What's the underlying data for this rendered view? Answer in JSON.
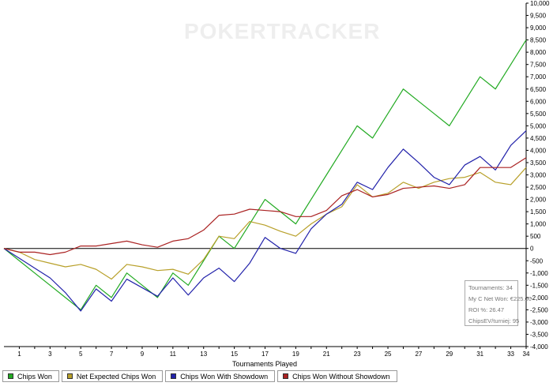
{
  "window": {
    "background": "#ffffff"
  },
  "watermark": {
    "text": "POKERTRACKER"
  },
  "stats": {
    "tournaments": "Tournaments: 34",
    "net_won": "My C Net Won: €225.00",
    "roi": "ROI %: 26.47",
    "chipsev": "ChipsEV/turniej: 95"
  },
  "chart_data": {
    "type": "line",
    "xlabel": "Tournaments Played",
    "ylabel": "",
    "xlim": [
      0,
      34
    ],
    "ylim": [
      -4000,
      10000
    ],
    "x_ticks": [
      1,
      3,
      5,
      7,
      9,
      11,
      13,
      15,
      17,
      19,
      21,
      23,
      25,
      27,
      29,
      31,
      33,
      34
    ],
    "y_ticks": [
      -4000,
      -3500,
      -3000,
      -2500,
      -2000,
      -1500,
      -1000,
      -500,
      0,
      500,
      1000,
      1500,
      2000,
      2500,
      3000,
      3500,
      4000,
      4500,
      5000,
      5500,
      6000,
      6500,
      7000,
      7500,
      8000,
      8500,
      9000,
      9500,
      10000
    ],
    "y_tick_labels": [
      "-4,000",
      "-3,500",
      "-3,000",
      "-2,500",
      "-2,000",
      "-1,500",
      "-1,000",
      "-500",
      "0",
      "500",
      "1,000",
      "1,500",
      "2,000",
      "2,500",
      "3,000",
      "3,500",
      "4,000",
      "4,500",
      "5,000",
      "5,500",
      "6,000",
      "6,500",
      "7,000",
      "7,500",
      "8,000",
      "8,500",
      "9,000",
      "9,500",
      "10,000"
    ],
    "grid": false,
    "legend_position": "bottom",
    "x": [
      0,
      1,
      2,
      3,
      4,
      5,
      6,
      7,
      8,
      9,
      10,
      11,
      12,
      13,
      14,
      15,
      16,
      17,
      18,
      19,
      20,
      21,
      22,
      23,
      24,
      25,
      26,
      27,
      28,
      29,
      30,
      31,
      32,
      33,
      34
    ],
    "series": [
      {
        "name": "Chips Won",
        "color": "#22aa22",
        "values": [
          0,
          -500,
          -1000,
          -1500,
          -2000,
          -2500,
          -1500,
          -2000,
          -1000,
          -1500,
          -2000,
          -1000,
          -1500,
          -500,
          500,
          0,
          1000,
          2000,
          1500,
          1000,
          2000,
          3000,
          4000,
          5000,
          4500,
          5500,
          6500,
          6000,
          5500,
          5000,
          6000,
          7000,
          6500,
          7500,
          8500
        ]
      },
      {
        "name": "Net Expected Chips Won",
        "color": "#b8a02a",
        "values": [
          0,
          -150,
          -450,
          -600,
          -750,
          -650,
          -850,
          -1250,
          -650,
          -750,
          -900,
          -850,
          -1050,
          -450,
          500,
          400,
          1100,
          950,
          700,
          500,
          1000,
          1400,
          1700,
          2600,
          2100,
          2250,
          2700,
          2450,
          2700,
          2850,
          2900,
          3100,
          2700,
          2600,
          3300
        ]
      },
      {
        "name": "Chips Won With Showdown",
        "color": "#2222aa",
        "values": [
          0,
          -400,
          -800,
          -1200,
          -1800,
          -2550,
          -1650,
          -2150,
          -1250,
          -1600,
          -1950,
          -1200,
          -1900,
          -1200,
          -800,
          -1350,
          -600,
          450,
          0,
          -200,
          800,
          1400,
          1800,
          2700,
          2400,
          3300,
          4050,
          3500,
          2900,
          2600,
          3400,
          3750,
          3200,
          4200,
          4800
        ]
      },
      {
        "name": "Chips Won Without Showdown",
        "color": "#aa2222",
        "values": [
          0,
          -150,
          -150,
          -250,
          -150,
          100,
          100,
          200,
          300,
          150,
          50,
          300,
          400,
          750,
          1350,
          1400,
          1600,
          1550,
          1500,
          1300,
          1300,
          1550,
          2150,
          2400,
          2100,
          2200,
          2450,
          2500,
          2550,
          2450,
          2600,
          3300,
          3300,
          3300,
          3700
        ]
      }
    ]
  }
}
